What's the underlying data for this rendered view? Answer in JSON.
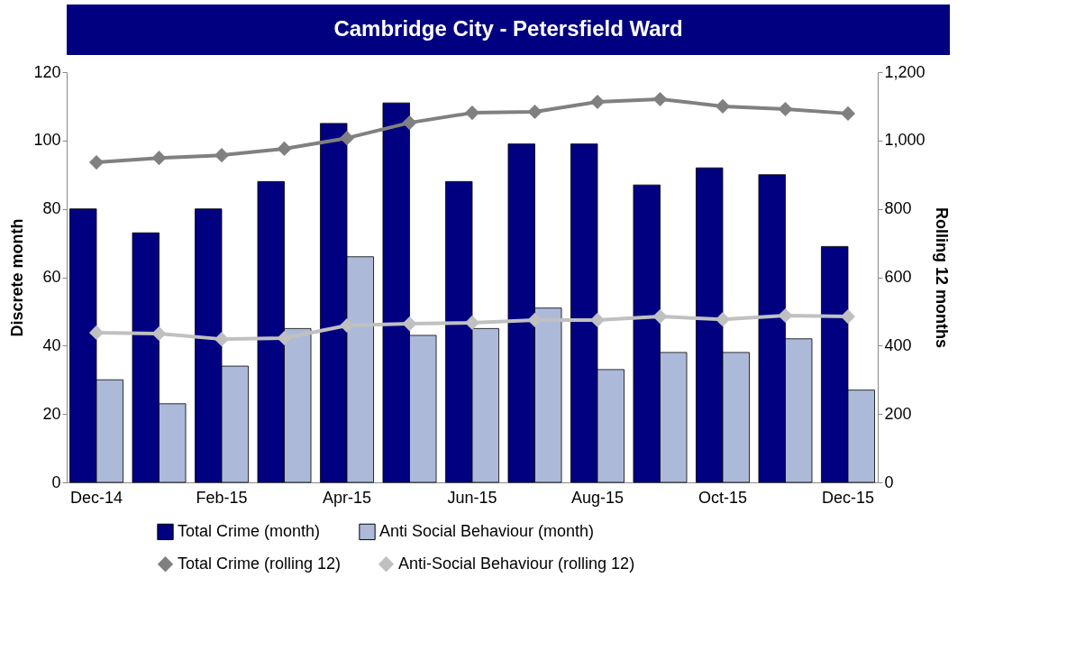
{
  "chart_data": {
    "type": "bar",
    "title": "Cambridge City - Petersfield Ward",
    "ylabel": "Discrete month",
    "y2label": "Rolling 12 months",
    "categories": [
      "Dec-14",
      null,
      "Feb-15",
      null,
      "Apr-15",
      null,
      "Jun-15",
      null,
      "Aug-15",
      null,
      "Oct-15",
      null,
      "Dec-15"
    ],
    "series": [
      {
        "name": "Total Crime (month)",
        "color": "#000080",
        "values": [
          80,
          73,
          80,
          88,
          105,
          111,
          88,
          99,
          99,
          87,
          92,
          90,
          69
        ]
      },
      {
        "name": "Anti Social Behaviour (month)",
        "color": "#adb9d9",
        "values": [
          30,
          23,
          34,
          45,
          66,
          43,
          45,
          51,
          33,
          38,
          38,
          42,
          27
        ]
      },
      {
        "name": "Total Crime (rolling 12)",
        "type": "line",
        "axis": "y2",
        "marker": "diamond",
        "color": "#808080",
        "values": [
          936,
          949,
          957,
          976,
          1007,
          1052,
          1081,
          1084,
          1113,
          1121,
          1100,
          1092,
          1079
        ]
      },
      {
        "name": "Anti-Social Behaviour (rolling 12)",
        "type": "line",
        "axis": "y2",
        "marker": "diamond",
        "color": "#c0c0c0",
        "values": [
          438,
          435,
          419,
          422,
          459,
          464,
          467,
          475,
          475,
          485,
          477,
          488,
          485
        ]
      }
    ],
    "ylim": [
      0,
      120
    ],
    "yticks": [
      0,
      20,
      40,
      60,
      80,
      100,
      120
    ],
    "y2lim": [
      0,
      1200
    ],
    "y2ticks": [
      0,
      200,
      400,
      600,
      800,
      {
        "value": 1000,
        "label": "1,000"
      },
      {
        "value": 1200,
        "label": "1,200"
      }
    ],
    "grid": false,
    "legend": "bottom"
  }
}
